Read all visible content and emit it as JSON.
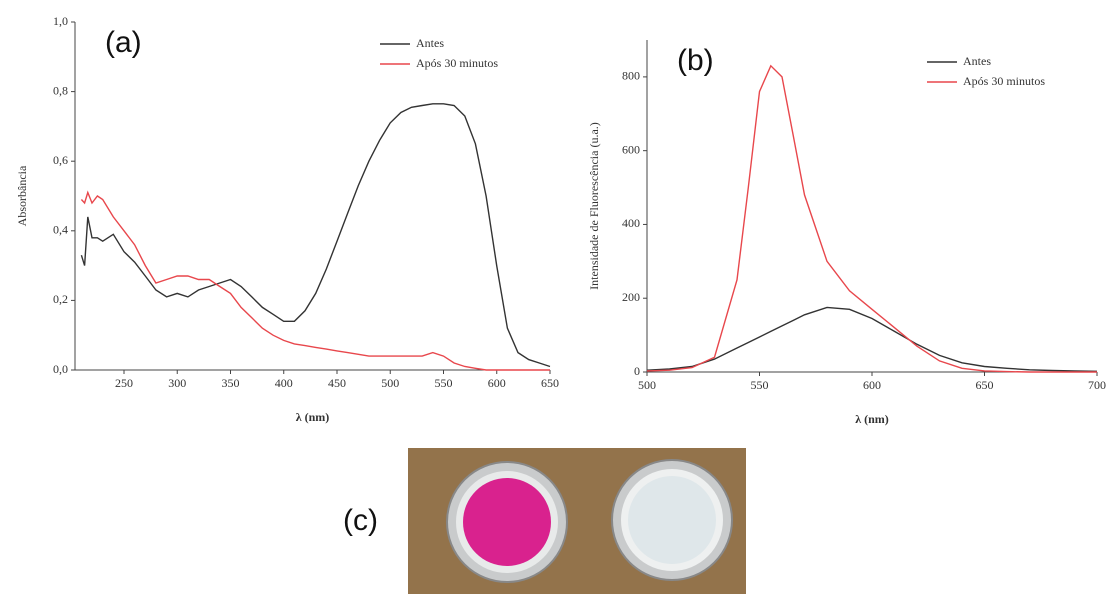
{
  "chart_data": [
    {
      "type": "line",
      "annotation": "(a)",
      "x_label": "λ (nm)",
      "y_label": "Absorbância",
      "x": [
        210,
        213,
        216,
        220,
        225,
        230,
        240,
        250,
        260,
        270,
        280,
        290,
        300,
        310,
        320,
        330,
        340,
        350,
        360,
        370,
        380,
        390,
        400,
        410,
        420,
        430,
        440,
        450,
        460,
        470,
        480,
        490,
        500,
        510,
        520,
        530,
        540,
        550,
        560,
        570,
        580,
        590,
        600,
        610,
        620,
        630,
        640,
        650
      ],
      "series": [
        {
          "name": "Antes",
          "color": "#333333",
          "values": [
            0.33,
            0.3,
            0.44,
            0.38,
            0.38,
            0.37,
            0.39,
            0.34,
            0.31,
            0.27,
            0.23,
            0.21,
            0.22,
            0.21,
            0.23,
            0.24,
            0.25,
            0.26,
            0.24,
            0.21,
            0.18,
            0.16,
            0.14,
            0.14,
            0.17,
            0.22,
            0.29,
            0.37,
            0.45,
            0.53,
            0.6,
            0.66,
            0.71,
            0.74,
            0.755,
            0.76,
            0.765,
            0.765,
            0.76,
            0.73,
            0.65,
            0.5,
            0.3,
            0.12,
            0.05,
            0.03,
            0.02,
            0.01
          ]
        },
        {
          "name": "Após 30 minutos",
          "color": "#e8474c",
          "values": [
            0.49,
            0.48,
            0.51,
            0.48,
            0.5,
            0.49,
            0.44,
            0.4,
            0.36,
            0.3,
            0.25,
            0.26,
            0.27,
            0.27,
            0.26,
            0.26,
            0.24,
            0.22,
            0.18,
            0.15,
            0.12,
            0.1,
            0.085,
            0.075,
            0.07,
            0.065,
            0.06,
            0.055,
            0.05,
            0.045,
            0.04,
            0.04,
            0.04,
            0.04,
            0.04,
            0.04,
            0.05,
            0.04,
            0.02,
            0.01,
            0.005,
            0,
            0,
            0,
            0,
            0,
            0,
            0
          ]
        }
      ],
      "xlim": [
        204,
        650
      ],
      "ylim": [
        0,
        1.0
      ],
      "xticks": [
        250,
        300,
        350,
        400,
        450,
        500,
        550,
        600,
        650
      ],
      "yticks": [
        {
          "value": 0,
          "label": "0,0"
        },
        {
          "value": 0.2,
          "label": "0,2"
        },
        {
          "value": 0.4,
          "label": "0,4"
        },
        {
          "value": 0.6,
          "label": "0,6"
        },
        {
          "value": 0.8,
          "label": "0,8"
        },
        {
          "value": 1.0,
          "label": "1,0"
        }
      ],
      "legend": "upper right"
    },
    {
      "type": "line",
      "annotation": "(b)",
      "x_label": "λ (nm)",
      "y_label": "Intensidade de Fluorescência (u.a.)",
      "x": [
        500,
        510,
        520,
        530,
        540,
        545,
        550,
        555,
        560,
        565,
        570,
        580,
        590,
        600,
        610,
        620,
        630,
        640,
        650,
        660,
        670,
        680,
        690,
        700
      ],
      "series": [
        {
          "name": "Antes",
          "color": "#333333",
          "values": [
            5,
            8,
            15,
            35,
            65,
            80,
            95,
            110,
            125,
            140,
            155,
            175,
            170,
            145,
            110,
            75,
            45,
            25,
            15,
            10,
            6,
            4,
            3,
            2
          ]
        },
        {
          "name": "Após 30 minutos",
          "color": "#e8474c",
          "values": [
            3,
            5,
            12,
            40,
            250,
            500,
            760,
            830,
            800,
            640,
            480,
            300,
            220,
            170,
            120,
            70,
            30,
            10,
            3,
            1,
            0,
            0,
            0,
            0
          ]
        }
      ],
      "xlim": [
        500,
        700
      ],
      "ylim": [
        0,
        900
      ],
      "xticks": [
        500,
        550,
        600,
        650,
        700
      ],
      "yticks": [
        0,
        200,
        400,
        600,
        800
      ],
      "legend": "upper right"
    }
  ],
  "photo_label": "(c)"
}
